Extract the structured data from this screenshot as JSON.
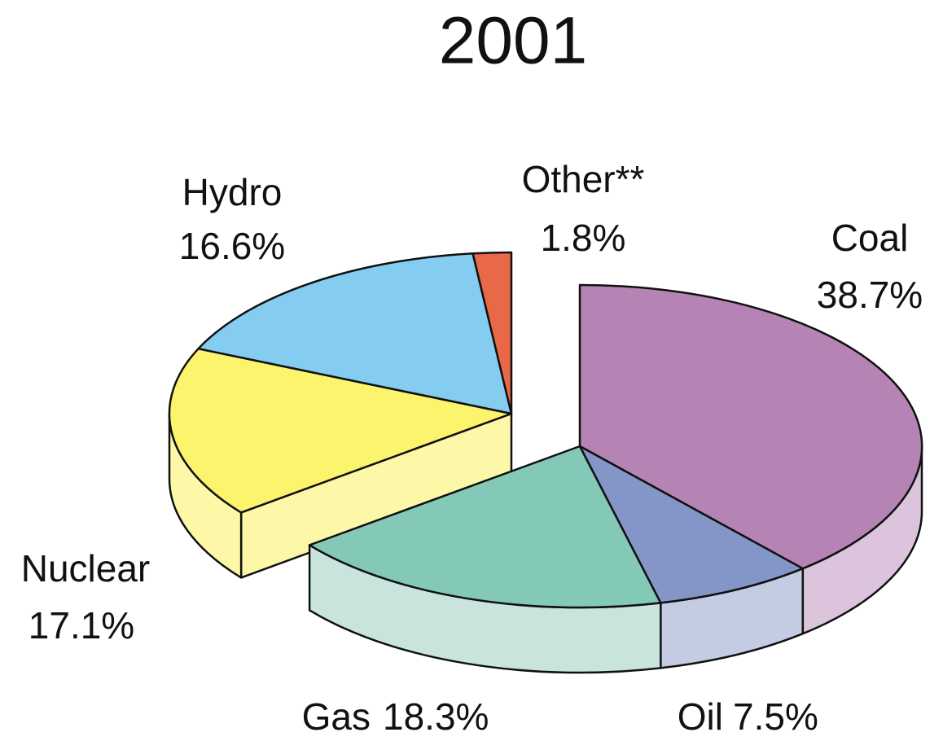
{
  "chart_data": {
    "type": "pie3d",
    "title": "2001",
    "categories": [
      "Coal",
      "Oil",
      "Gas",
      "Nuclear",
      "Hydro",
      "Other**"
    ],
    "values": [
      38.7,
      7.5,
      18.3,
      17.1,
      16.6,
      1.8
    ],
    "value_labels": [
      "38.7%",
      "7.5%",
      "18.3%",
      "17.1%",
      "16.6%",
      "1.8%"
    ],
    "colors": [
      "#b584b4",
      "#8496c8",
      "#84c8b8",
      "#fcf46c",
      "#84ccf0",
      "#e86848"
    ],
    "side_colors": [
      "#dcc4dc",
      "#c4cce4",
      "#c8e4dc",
      "#fcf8a8",
      "#c4e6f8",
      "#f4b4a4"
    ]
  }
}
